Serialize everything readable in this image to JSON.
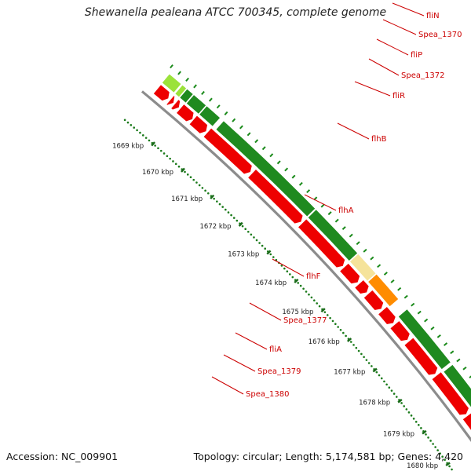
{
  "title": "Shewanella pealeana ATCC 700345, complete genome",
  "footer": {
    "accession": "Accession: NC_009901",
    "summary": "Topology: circular; Length: 5,174,581 bp; Genes: 4,420"
  },
  "ruler": {
    "labels": [
      "1669 kbp",
      "1670 kbp",
      "1671 kbp",
      "1672 kbp",
      "1673 kbp",
      "1674 kbp",
      "1675 kbp",
      "1676 kbp",
      "1677 kbp",
      "1678 kbp",
      "1679 kbp",
      "1680 kbp"
    ]
  },
  "colors": {
    "backbone": "#8c8c8c",
    "gene": "#ee0000",
    "feature_dark": "#1f8a1f",
    "feature_light": "#9be23a",
    "highlight_pale": "#f5e39a",
    "highlight_orange": "#ff8c00",
    "label": "#cc0000",
    "dots": "#1a7a1a"
  },
  "gene_labels": [
    "fliN",
    "Spea_1370",
    "fliP",
    "Spea_1372",
    "fliR",
    "flhB",
    "flhA",
    "flhF",
    "Spea_1377",
    "fliA",
    "Spea_1379",
    "Spea_1380"
  ]
}
